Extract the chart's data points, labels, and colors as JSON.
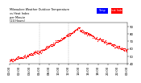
{
  "title": "Milwaukee Weather Outdoor Temperature\nvs Heat Index\nper Minute\n(24 Hours)",
  "ylim": [
    40,
    95
  ],
  "xlim": [
    0,
    1440
  ],
  "dot_color": "#ff0000",
  "legend_temp_color": "#0000ff",
  "legend_heat_color": "#ff0000",
  "legend_temp_label": "Temp",
  "legend_heat_label": "Heat Index",
  "background_color": "#ffffff",
  "title_fontsize": 2.5,
  "tick_fontsize": 2.8,
  "yticks": [
    40,
    50,
    60,
    70,
    80,
    90
  ],
  "ytick_labels": [
    "40",
    "50",
    "60",
    "70",
    "80",
    "90"
  ],
  "xtick_hours": [
    0,
    2,
    4,
    6,
    8,
    10,
    12,
    14,
    16,
    18,
    20,
    22,
    24
  ],
  "grid_hours": [
    6,
    12
  ],
  "dot_size": 0.8,
  "dot_step": 4
}
